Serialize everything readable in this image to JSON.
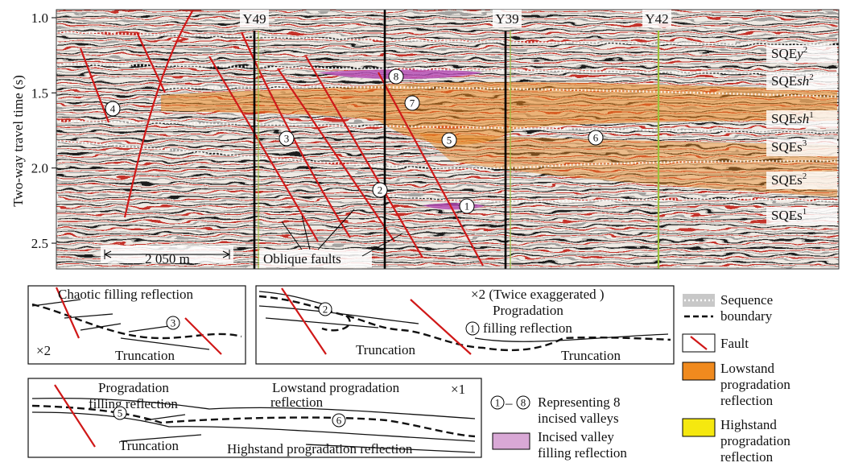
{
  "seismic": {
    "y_axis": {
      "label": "Two-way travel time (s)",
      "ticks": [
        {
          "value": 1,
          "label": "1.0"
        },
        {
          "value": 1.5,
          "label": "1.5"
        },
        {
          "value": 2,
          "label": "2.0"
        },
        {
          "value": 2.5,
          "label": "2.5"
        }
      ]
    },
    "wells": [
      "Y49",
      "Y39",
      "Y42"
    ],
    "sequences": [
      {
        "prefix": "SQE",
        "letters": "y",
        "sup": "2"
      },
      {
        "prefix": "SQE",
        "letters": "sh",
        "sup": "2"
      },
      {
        "prefix": "SQE",
        "letters": "sh",
        "sup": "1"
      },
      {
        "prefix": "SQEs",
        "letters": "",
        "sup": "3"
      },
      {
        "prefix": "SQEs",
        "letters": "",
        "sup": "2"
      },
      {
        "prefix": "SQEs",
        "letters": "",
        "sup": "1"
      }
    ],
    "valleys": [
      "1",
      "2",
      "3",
      "4",
      "5",
      "6",
      "7",
      "8"
    ],
    "scale_bar": "2 050 m",
    "faults_label": "Oblique faults"
  },
  "panel_a": {
    "title": "Chaotic filling reflection",
    "valley": "3",
    "scale": "×2",
    "truncation": "Truncation"
  },
  "panel_b": {
    "scale": "×2 (Twice exaggerated )",
    "valley_a": "2",
    "valley_b": "1",
    "filling": [
      "Progradation",
      "filling reflection"
    ],
    "truncation_a": "Truncation",
    "truncation_b": "Truncation"
  },
  "panel_c": {
    "filling": [
      "Progradation",
      "filling reflection"
    ],
    "valley_a": "5",
    "lowstand": [
      "Lowstand progradation",
      "reflection"
    ],
    "scale": "×1",
    "valley_b": "6",
    "truncation": "Truncation",
    "highstand": "Highstand progradation reflection"
  },
  "legend": {
    "sequence_boundary": [
      "Sequence",
      "boundary"
    ],
    "fault": "Fault",
    "lowstand": [
      "Lowstand",
      "progradation",
      "reflection"
    ],
    "highstand": [
      "Highstand",
      "progradation",
      "reflection"
    ],
    "valleys_range": {
      "from": "1",
      "sep": "–",
      "to": "8"
    },
    "valleys_text": [
      "Representing 8",
      "incised valleys"
    ],
    "incised": [
      "Incised valley",
      "filling reflection"
    ]
  }
}
